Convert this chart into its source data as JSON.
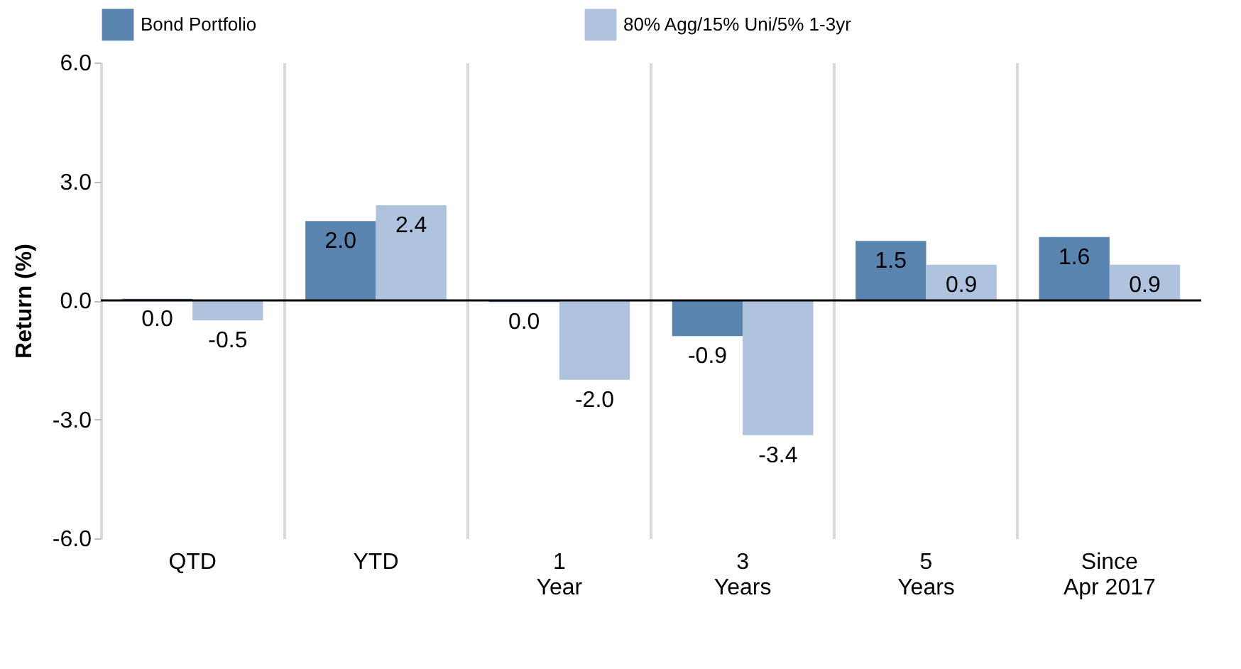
{
  "chart_data": {
    "type": "bar",
    "ylabel": "Return (%)",
    "categories": [
      "QTD",
      "YTD",
      "1 Year",
      "3 Years",
      "5 Years",
      "Since Apr 2017"
    ],
    "series": [
      {
        "name": "Bond Portfolio",
        "color": "#5a84b0",
        "values": [
          0.04,
          2.0,
          -0.04,
          -0.9,
          1.5,
          1.6
        ],
        "value_labels": [
          "0.0",
          "2.0",
          "0.0",
          "-0.9",
          "1.5",
          "1.6"
        ]
      },
      {
        "name": "80% Agg/15% Uni/5% 1-3yr",
        "color": "#afc3de",
        "values": [
          -0.5,
          2.4,
          -2.0,
          -3.4,
          0.9,
          0.9
        ],
        "value_labels": [
          "-0.5",
          "2.4",
          "-2.0",
          "-3.4",
          "0.9",
          "0.9"
        ]
      }
    ],
    "ylim": [
      -6,
      6
    ],
    "yticks": [
      {
        "value": -6,
        "label": "-6.0"
      },
      {
        "value": -3,
        "label": "-3.0"
      },
      {
        "value": 0,
        "label": "0.0"
      },
      {
        "value": 3,
        "label": "3.0"
      },
      {
        "value": 6,
        "label": "6.0"
      }
    ],
    "ref_lines": [
      {
        "axis": "y",
        "value": 0,
        "color": "#000000"
      }
    ],
    "grid": "x",
    "legend": "top left"
  }
}
